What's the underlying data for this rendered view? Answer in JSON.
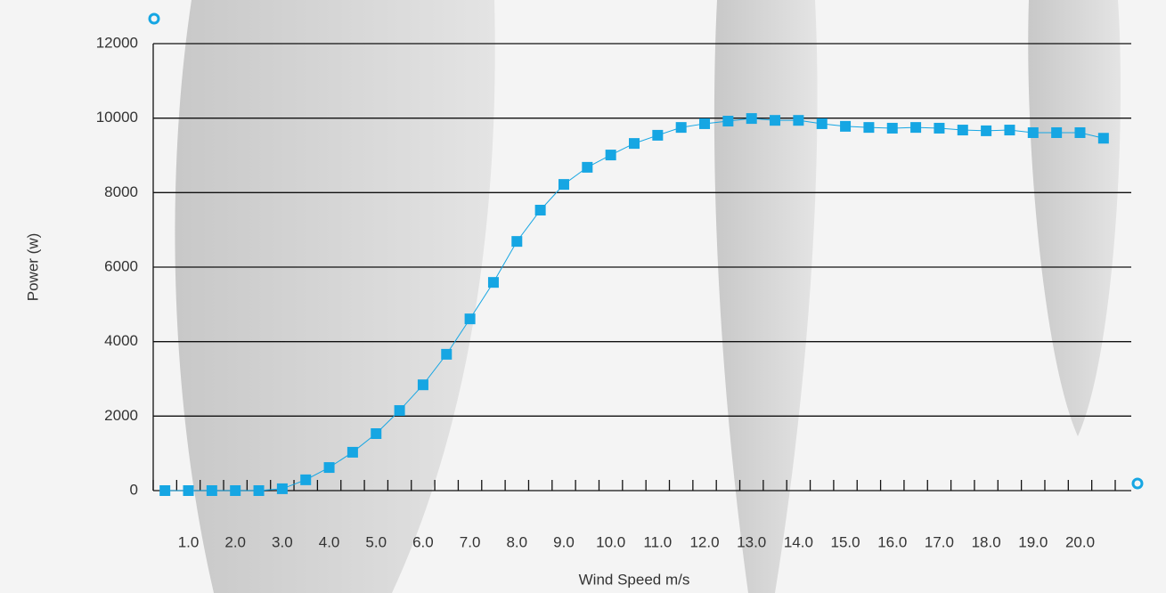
{
  "chart_data": {
    "type": "line",
    "x_label": "Wind Speed m/s",
    "y_label": "Power (w)",
    "categories": [
      null,
      "1.0",
      null,
      "2.0",
      null,
      "3.0",
      null,
      "4.0",
      null,
      "5.0",
      null,
      "6.0",
      null,
      "7.0",
      null,
      "8.0",
      null,
      "9.0",
      null,
      "10.0",
      null,
      "11.0",
      null,
      "12.0",
      null,
      "13.0",
      null,
      "14.0",
      null,
      "15.0",
      null,
      "16.0",
      null,
      "17.0",
      null,
      "18.0",
      null,
      "19.0",
      null,
      "20.0",
      null
    ],
    "values": [
      0,
      0,
      0,
      0,
      0,
      50,
      290,
      620,
      1030,
      1530,
      2150,
      2840,
      3660,
      4610,
      5590,
      6690,
      7530,
      8220,
      8680,
      9010,
      9320,
      9540,
      9750,
      9850,
      9920,
      9990,
      9940,
      9940,
      9850,
      9780,
      9750,
      9730,
      9750,
      9730,
      9680,
      9660,
      9680,
      9610,
      9610,
      9610,
      9460
    ],
    "color": "#16a6e3",
    "ylim": [
      0,
      12000
    ],
    "yticks": [
      0,
      2000,
      4000,
      6000,
      8000,
      10000,
      12000
    ],
    "grid": true
  }
}
